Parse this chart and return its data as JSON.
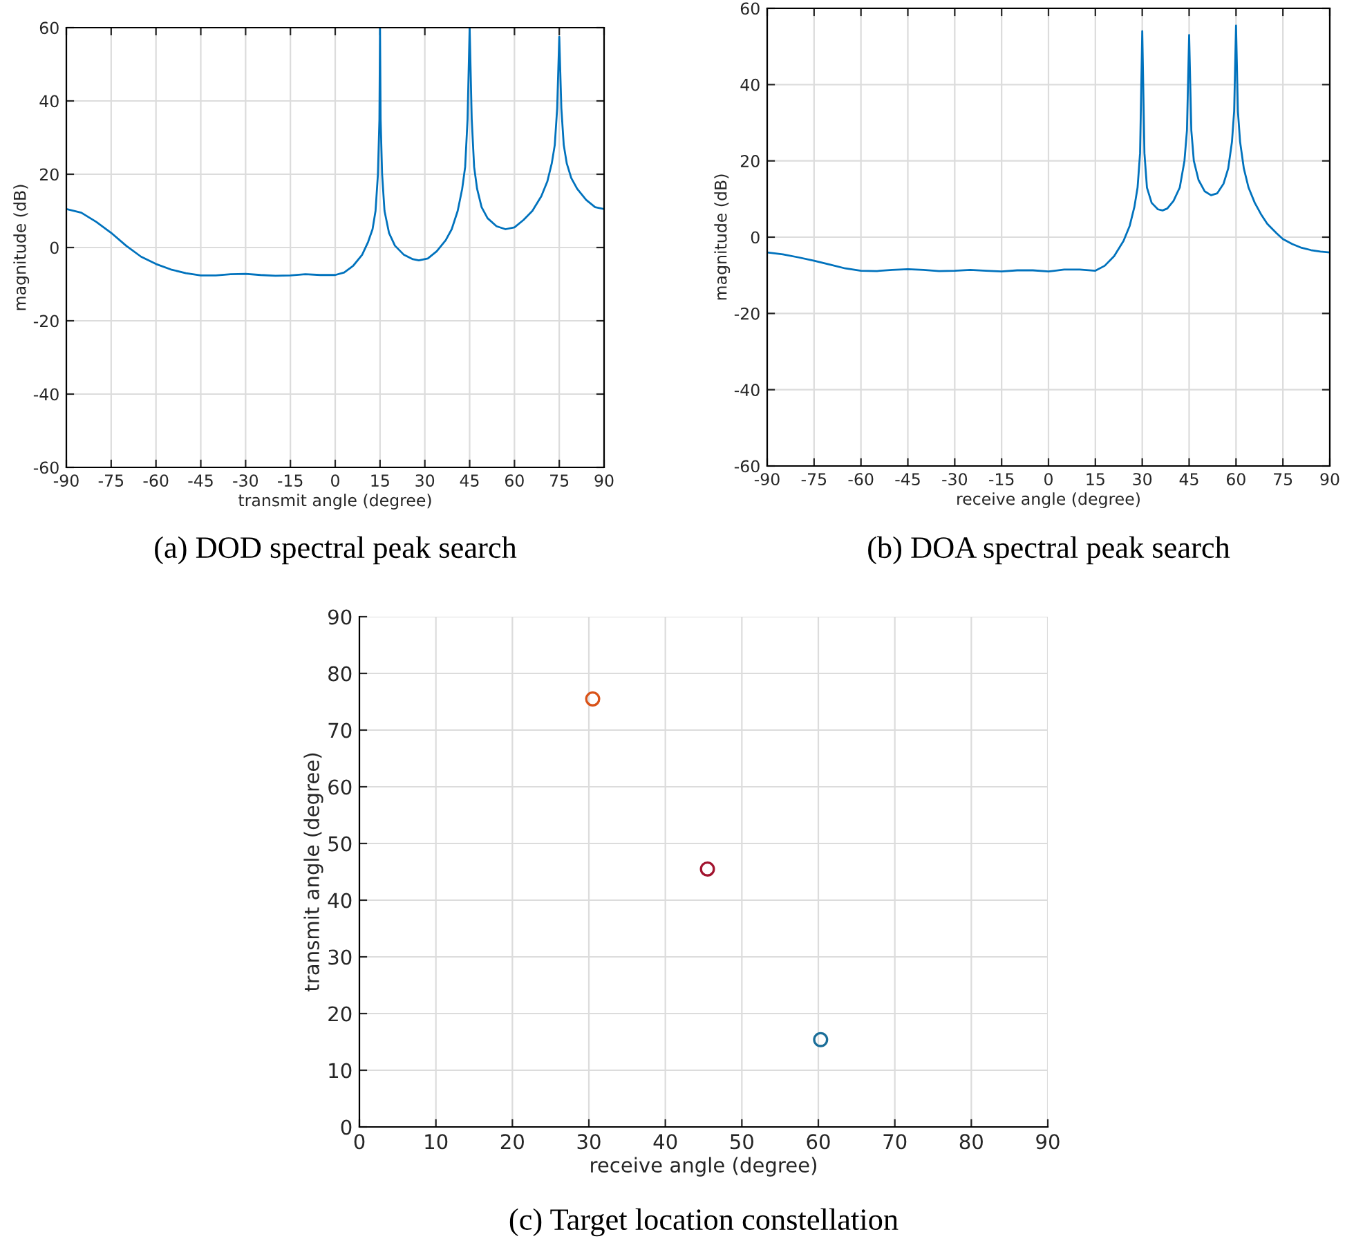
{
  "chart_data": [
    {
      "type": "line",
      "title": "(a) DOD spectral peak search",
      "xlabel": "transmit angle (degree)",
      "ylabel": "magnitude (dB)",
      "xlim": [
        -90,
        90
      ],
      "ylim": [
        -60,
        60
      ],
      "xticks": [
        -90,
        -75,
        -60,
        -45,
        -30,
        -15,
        0,
        15,
        30,
        45,
        60,
        75,
        90
      ],
      "yticks": [
        -60,
        -40,
        -20,
        0,
        20,
        40,
        60
      ],
      "grid": true,
      "legend": false,
      "marker": "none",
      "line_style": "solid",
      "series": [
        {
          "color": "#0072bd",
          "x": [
            -90,
            -85,
            -80,
            -75,
            -70,
            -65,
            -60,
            -55,
            -50,
            -45,
            -40,
            -35,
            -30,
            -25,
            -20,
            -15,
            -10,
            -5,
            0,
            3,
            6,
            9,
            11,
            12.5,
            13.5,
            14.3,
            14.8,
            15,
            15.2,
            15.7,
            16.5,
            18,
            20,
            23,
            26,
            28,
            31,
            34,
            37,
            39,
            41,
            42.5,
            43.5,
            44.3,
            45,
            45.7,
            46.5,
            47.5,
            49,
            51,
            54,
            57,
            60,
            63,
            66,
            69,
            71,
            72.5,
            73.5,
            74.3,
            75,
            75.7,
            76.5,
            77.5,
            79,
            81,
            84,
            87,
            90
          ],
          "values": [
            10.5,
            9.5,
            7,
            4,
            0.5,
            -2.5,
            -4.5,
            -6,
            -7,
            -7.6,
            -7.6,
            -7.3,
            -7.2,
            -7.5,
            -7.7,
            -7.6,
            -7.3,
            -7.5,
            -7.5,
            -6.8,
            -5,
            -2,
            1.5,
            5,
            10,
            20,
            35,
            60,
            35,
            20,
            10,
            4,
            0.5,
            -2,
            -3.2,
            -3.5,
            -3,
            -1,
            2,
            5,
            10,
            16,
            22,
            35,
            60,
            35,
            22,
            16,
            11,
            8,
            5.8,
            5,
            5.5,
            7.5,
            10,
            14,
            18,
            23,
            28,
            38,
            57.5,
            38,
            28,
            23,
            19,
            16,
            13,
            11,
            10.5
          ]
        }
      ]
    },
    {
      "type": "line",
      "title": "(b) DOA spectral peak search",
      "xlabel": "receive angle (degree)",
      "ylabel": "magnitude (dB)",
      "xlim": [
        -90,
        90
      ],
      "ylim": [
        -60,
        60
      ],
      "xticks": [
        -90,
        -75,
        -60,
        -45,
        -30,
        -15,
        0,
        15,
        30,
        45,
        60,
        75,
        90
      ],
      "yticks": [
        -60,
        -40,
        -20,
        0,
        20,
        40,
        60
      ],
      "grid": true,
      "legend": false,
      "marker": "none",
      "line_style": "solid",
      "series": [
        {
          "color": "#0072bd",
          "x": [
            -90,
            -85,
            -80,
            -75,
            -70,
            -65,
            -60,
            -55,
            -50,
            -45,
            -40,
            -35,
            -30,
            -25,
            -20,
            -15,
            -10,
            -5,
            0,
            5,
            10,
            15,
            18,
            21,
            24,
            26,
            27.5,
            28.5,
            29.3,
            30,
            30.7,
            31.5,
            33,
            35,
            36.5,
            38,
            40,
            42,
            43.5,
            44.3,
            45,
            45.7,
            46.5,
            48,
            50,
            52,
            54,
            56,
            57.5,
            58.7,
            59.4,
            60,
            60.6,
            61.3,
            62.5,
            64,
            66,
            68,
            70,
            73,
            75,
            78,
            81,
            84,
            87,
            90
          ],
          "values": [
            -4,
            -4.5,
            -5.3,
            -6.2,
            -7.2,
            -8.2,
            -8.8,
            -8.9,
            -8.6,
            -8.4,
            -8.6,
            -8.9,
            -8.8,
            -8.6,
            -8.8,
            -9,
            -8.7,
            -8.7,
            -9,
            -8.5,
            -8.5,
            -8.8,
            -7.5,
            -5,
            -1,
            3,
            8,
            13,
            22,
            54,
            22,
            13,
            9,
            7.3,
            7,
            7.5,
            9.5,
            13,
            20,
            28,
            53,
            28,
            20,
            15,
            12,
            11,
            11.5,
            14,
            18,
            25,
            33,
            55.5,
            33,
            25,
            18,
            13,
            9,
            6,
            3.5,
            1,
            -0.5,
            -1.8,
            -2.8,
            -3.4,
            -3.8,
            -4
          ]
        }
      ]
    },
    {
      "type": "scatter",
      "title": "(c) Target location constellation",
      "xlabel": "receive angle (degree)",
      "ylabel": "transmit angle (degree)",
      "xlim": [
        0,
        90
      ],
      "ylim": [
        0,
        90
      ],
      "xticks": [
        0,
        10,
        20,
        30,
        40,
        50,
        60,
        70,
        80,
        90
      ],
      "yticks": [
        0,
        10,
        20,
        30,
        40,
        50,
        60,
        70,
        80,
        90
      ],
      "grid": true,
      "legend": false,
      "marker": "circle",
      "series": [
        {
          "color": "#d95319",
          "x": [
            30.5
          ],
          "values": [
            75.5
          ]
        },
        {
          "color": "#a2142f",
          "x": [
            45.5
          ],
          "values": [
            45.5
          ]
        },
        {
          "color": "#1a6e99",
          "x": [
            60.3
          ],
          "values": [
            15.4
          ]
        }
      ]
    }
  ]
}
